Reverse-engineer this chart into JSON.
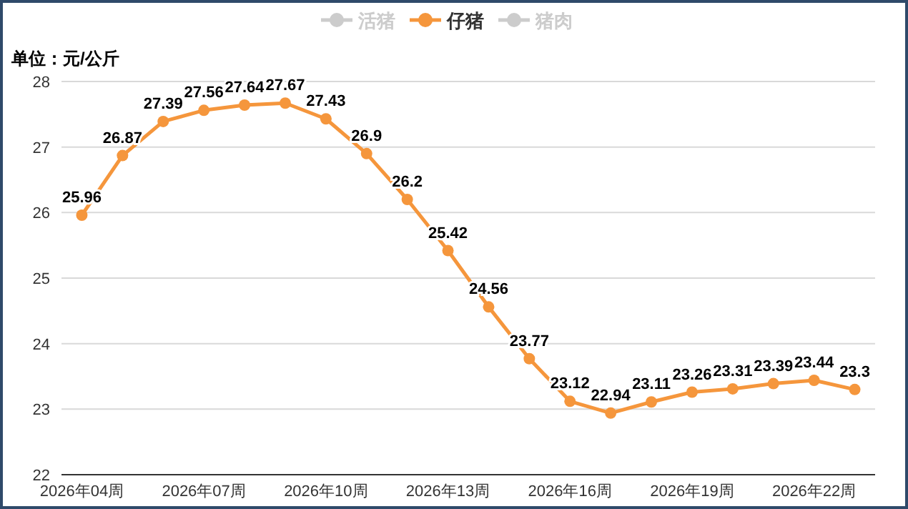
{
  "chart_data": {
    "type": "line",
    "ylabel": "单位：元/公斤",
    "categories": [
      "2026年04周",
      null,
      null,
      "2026年07周",
      null,
      null,
      "2026年10周",
      null,
      null,
      "2026年13周",
      null,
      null,
      "2026年16周",
      null,
      null,
      "2026年19周",
      null,
      null,
      "2026年22周",
      null
    ],
    "series": [
      {
        "name": "活猪",
        "color": "#cccccc",
        "values": [
          null,
          null,
          null,
          null,
          null,
          null,
          null,
          null,
          null,
          null,
          null,
          null,
          null,
          null,
          null,
          null,
          null,
          null,
          null,
          null
        ]
      },
      {
        "name": "仔猪",
        "color": "#f5963c",
        "values": [
          25.96,
          26.87,
          27.39,
          27.56,
          27.64,
          27.67,
          27.43,
          26.9,
          26.2,
          25.42,
          24.56,
          23.77,
          23.12,
          22.94,
          23.11,
          23.26,
          23.31,
          23.39,
          23.44,
          23.3
        ]
      },
      {
        "name": "猪肉",
        "color": "#cccccc",
        "values": [
          null,
          null,
          null,
          null,
          null,
          null,
          null,
          null,
          null,
          null,
          null,
          null,
          null,
          null,
          null,
          null,
          null,
          null,
          null,
          null
        ]
      }
    ],
    "ylim": [
      22,
      28
    ],
    "yticks": [
      22,
      23,
      24,
      25,
      26,
      27,
      28
    ],
    "grid": "y",
    "legend": "top",
    "marker": "circle",
    "line_style": "solid",
    "data_labels": true
  }
}
